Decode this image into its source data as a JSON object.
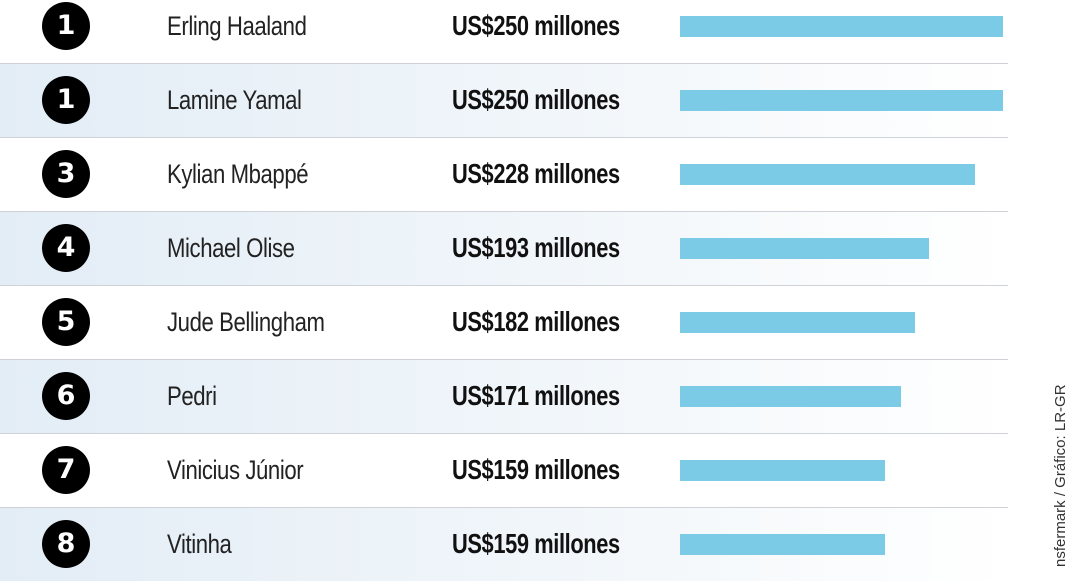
{
  "chart_data": {
    "type": "bar",
    "orientation": "horizontal",
    "categories": [
      "Erling Haaland",
      "Lamine Yamal",
      "Kylian Mbappé",
      "Michael Olise",
      "Jude Bellingham",
      "Pedri",
      "Vinicius Júnior",
      "Vitinha"
    ],
    "values": [
      250,
      250,
      228,
      193,
      182,
      171,
      159,
      159
    ],
    "value_labels": [
      "US$250 millones",
      "US$250 millones",
      "US$228 millones",
      "US$193 millones",
      "US$182 millones",
      "US$171 millones",
      "US$159 millones",
      "US$159 millones"
    ],
    "ranks": [
      "1",
      "1",
      "3",
      "4",
      "5",
      "6",
      "7",
      "8"
    ],
    "bar_color": "#7ccbe6",
    "row_shading": "#e3edf6",
    "xlim": [
      0,
      250
    ]
  },
  "source_note": "nsfermark / Gráfico: LR-GR"
}
